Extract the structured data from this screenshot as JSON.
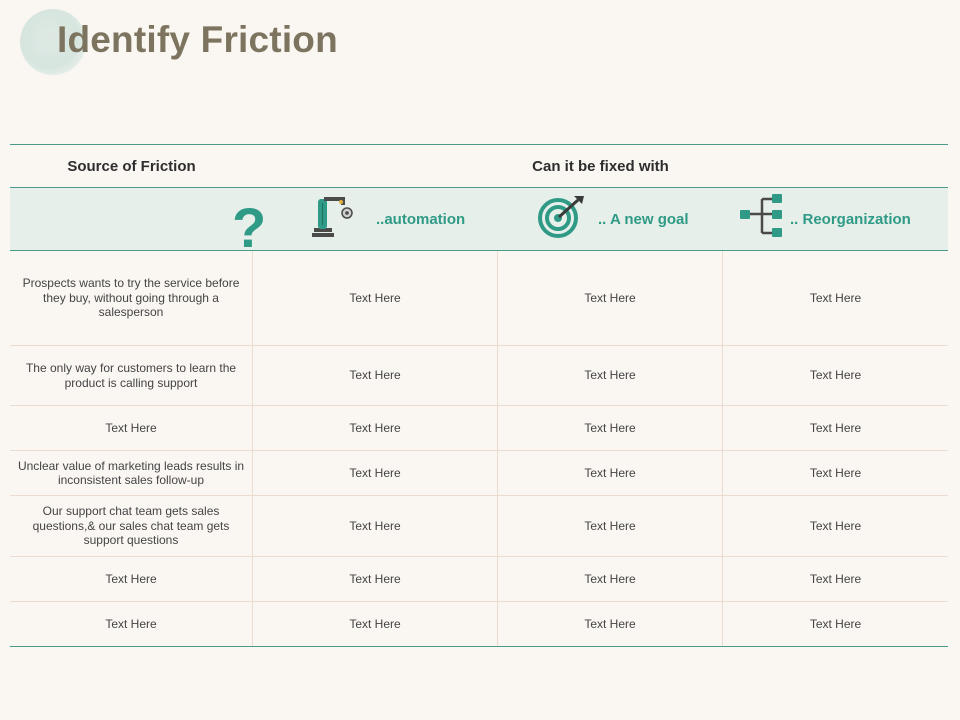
{
  "title": "Identify Friction",
  "header": {
    "source": "Source of Friction",
    "fixed": "Can it be fixed with"
  },
  "solutions": [
    {
      "label": "..automation",
      "icon": "robot-arm-icon"
    },
    {
      "label": ".. A new goal",
      "icon": "target-icon"
    },
    {
      "label": ".. Reorganization",
      "icon": "org-chart-icon"
    }
  ],
  "question_mark": "?",
  "colors": {
    "accent": "#2f9a85",
    "title": "#7d745f",
    "band": "#e6efea"
  },
  "rows": [
    {
      "source": "Prospects wants to try the service before they buy, without going through a salesperson",
      "cells": [
        "Text Here",
        "Text Here",
        "Text Here"
      ]
    },
    {
      "source": "The only way for customers to learn the product is calling support",
      "cells": [
        "Text Here",
        "Text Here",
        "Text Here"
      ]
    },
    {
      "source": "Text Here",
      "cells": [
        "Text Here",
        "Text Here",
        "Text Here"
      ]
    },
    {
      "source": "Unclear value of marketing leads results in inconsistent sales follow-up",
      "cells": [
        "Text Here",
        "Text Here",
        "Text Here"
      ]
    },
    {
      "source": "Our support chat team gets sales questions,& our sales chat team gets support questions",
      "cells": [
        "Text Here",
        "Text Here",
        "Text Here"
      ]
    },
    {
      "source": "Text Here",
      "cells": [
        "Text Here",
        "Text Here",
        "Text Here"
      ]
    },
    {
      "source": "Text Here",
      "cells": [
        "Text Here",
        "Text Here",
        "Text Here"
      ]
    }
  ]
}
